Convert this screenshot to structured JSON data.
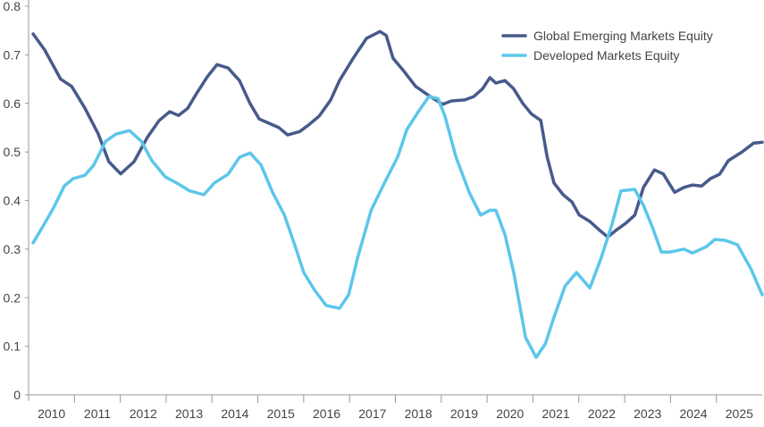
{
  "chart_data": {
    "type": "line",
    "title": "",
    "xlabel": "",
    "ylabel": "",
    "xlim": [
      2010,
      2026
    ],
    "ylim": [
      0,
      0.8
    ],
    "yticks": [
      "0",
      "0.1",
      "0.2",
      "0.3",
      "0.4",
      "0.5",
      "0.6",
      "0.7",
      "0.8"
    ],
    "xticks": [
      "2010",
      "2011",
      "2012",
      "2013",
      "2014",
      "2015",
      "2016",
      "2017",
      "2018",
      "2019",
      "2020",
      "2021",
      "2022",
      "2023",
      "2024",
      "2025"
    ],
    "grid": false,
    "legend_position": "top-right",
    "series": [
      {
        "name": "Global Emerging Markets Equity",
        "color": "#475a8b",
        "x": [
          2010.1,
          2010.35,
          2010.7,
          2010.94,
          2011.23,
          2011.52,
          2011.75,
          2012.01,
          2012.3,
          2012.59,
          2012.85,
          2013.08,
          2013.27,
          2013.47,
          2013.66,
          2013.9,
          2014.11,
          2014.35,
          2014.6,
          2014.83,
          2015.03,
          2015.22,
          2015.46,
          2015.65,
          2015.91,
          2016.1,
          2016.34,
          2016.59,
          2016.78,
          2017.08,
          2017.37,
          2017.66,
          2017.8,
          2017.95,
          2018.19,
          2018.44,
          2018.73,
          2019.03,
          2019.22,
          2019.51,
          2019.71,
          2019.9,
          2020.06,
          2020.19,
          2020.39,
          2020.58,
          2020.78,
          2020.97,
          2021.17,
          2021.31,
          2021.46,
          2021.66,
          2021.85,
          2022.01,
          2022.24,
          2022.44,
          2022.63,
          2022.83,
          2023.02,
          2023.22,
          2023.41,
          2023.65,
          2023.84,
          2024.09,
          2024.29,
          2024.48,
          2024.68,
          2024.87,
          2025.07,
          2025.26,
          2025.56,
          2025.81,
          2026.0
        ],
        "values": [
          0.743,
          0.71,
          0.65,
          0.635,
          0.59,
          0.537,
          0.48,
          0.455,
          0.48,
          0.53,
          0.565,
          0.583,
          0.575,
          0.59,
          0.62,
          0.655,
          0.68,
          0.673,
          0.647,
          0.6,
          0.568,
          0.56,
          0.55,
          0.535,
          0.542,
          0.555,
          0.574,
          0.607,
          0.647,
          0.693,
          0.734,
          0.748,
          0.74,
          0.693,
          0.666,
          0.635,
          0.616,
          0.598,
          0.605,
          0.607,
          0.614,
          0.63,
          0.653,
          0.642,
          0.647,
          0.63,
          0.6,
          0.578,
          0.565,
          0.49,
          0.436,
          0.412,
          0.397,
          0.37,
          0.357,
          0.34,
          0.325,
          0.34,
          0.353,
          0.37,
          0.427,
          0.463,
          0.455,
          0.417,
          0.427,
          0.432,
          0.43,
          0.445,
          0.454,
          0.482,
          0.5,
          0.518,
          0.52
        ]
      },
      {
        "name": "Developed Markets Equity",
        "color": "#5cc6ea",
        "x": [
          2010.1,
          2010.35,
          2010.55,
          2010.78,
          2010.97,
          2011.23,
          2011.42,
          2011.68,
          2011.91,
          2012.2,
          2012.46,
          2012.69,
          2012.98,
          2013.27,
          2013.51,
          2013.82,
          2014.05,
          2014.35,
          2014.6,
          2014.83,
          2015.07,
          2015.32,
          2015.58,
          2015.81,
          2016.0,
          2016.24,
          2016.49,
          2016.78,
          2016.98,
          2017.17,
          2017.47,
          2017.76,
          2018.05,
          2018.25,
          2018.5,
          2018.73,
          2018.93,
          2019.08,
          2019.32,
          2019.61,
          2019.86,
          2020.06,
          2020.19,
          2020.39,
          2020.58,
          2020.84,
          2021.07,
          2021.27,
          2021.46,
          2021.7,
          2021.95,
          2022.24,
          2022.48,
          2022.73,
          2022.92,
          2023.22,
          2023.41,
          2023.61,
          2023.8,
          2024.0,
          2024.29,
          2024.48,
          2024.78,
          2024.97,
          2025.2,
          2025.46,
          2025.75,
          2026.0
        ],
        "values": [
          0.313,
          0.353,
          0.386,
          0.43,
          0.445,
          0.452,
          0.473,
          0.522,
          0.537,
          0.544,
          0.522,
          0.482,
          0.449,
          0.434,
          0.42,
          0.412,
          0.436,
          0.454,
          0.489,
          0.498,
          0.473,
          0.417,
          0.37,
          0.307,
          0.252,
          0.215,
          0.184,
          0.178,
          0.206,
          0.28,
          0.38,
          0.436,
          0.49,
          0.546,
          0.583,
          0.614,
          0.61,
          0.574,
          0.49,
          0.417,
          0.37,
          0.38,
          0.38,
          0.33,
          0.252,
          0.118,
          0.077,
          0.105,
          0.16,
          0.224,
          0.252,
          0.22,
          0.28,
          0.353,
          0.42,
          0.423,
          0.39,
          0.344,
          0.294,
          0.294,
          0.3,
          0.292,
          0.305,
          0.32,
          0.318,
          0.309,
          0.26,
          0.206
        ]
      }
    ]
  }
}
